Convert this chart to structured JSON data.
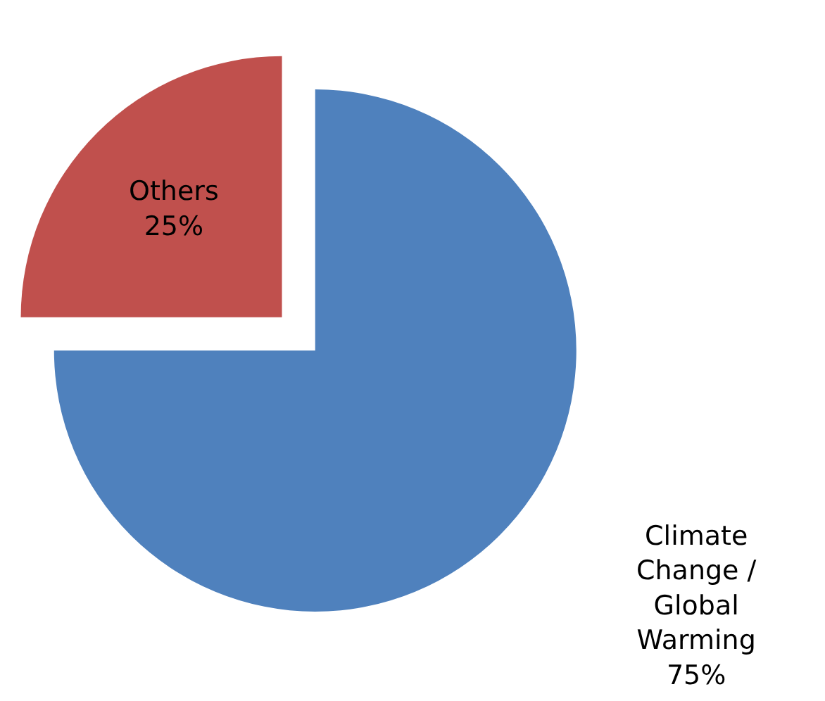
{
  "chart_data": {
    "type": "pie",
    "categories": [
      "Climate Change / Global Warming",
      "Others"
    ],
    "values": [
      75,
      25
    ],
    "colors": [
      "#4f81bd",
      "#c0504d"
    ],
    "value_labels": [
      "75%",
      "25%"
    ],
    "legend": false
  }
}
